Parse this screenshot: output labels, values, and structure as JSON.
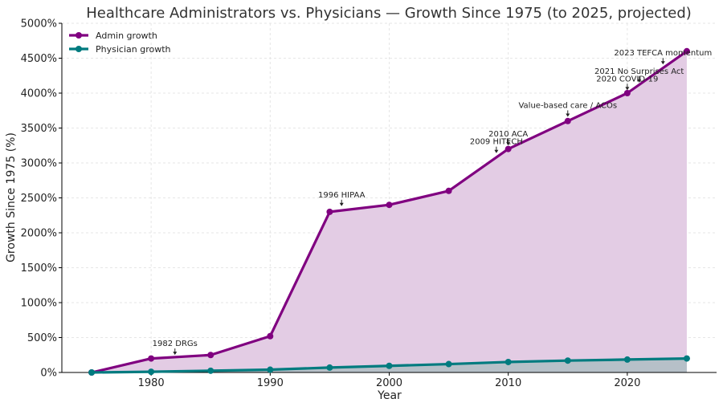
{
  "chart_data": {
    "type": "area",
    "title": "Healthcare Administrators vs. Physicians — Growth Since 1975 (to 2025, projected)",
    "xlabel": "Year",
    "ylabel": "Growth Since 1975 (%)",
    "xlim": [
      1972.5,
      2027.5
    ],
    "ylim": [
      0,
      5000
    ],
    "xticks": [
      1980,
      1990,
      2000,
      2010,
      2020
    ],
    "yticks": [
      0,
      500,
      1000,
      1500,
      2000,
      2500,
      3000,
      3500,
      4000,
      4500,
      5000
    ],
    "ytick_suffix": "%",
    "grid": true,
    "legend": "top-left",
    "series": [
      {
        "name": "Admin growth",
        "color": "#800080",
        "fill_color": "#e3cce4",
        "x": [
          1975,
          1980,
          1985,
          1990,
          1995,
          2000,
          2005,
          2010,
          2015,
          2020,
          2025
        ],
        "y": [
          0,
          200,
          250,
          520,
          2300,
          2400,
          2600,
          3200,
          3600,
          4000,
          4600
        ]
      },
      {
        "name": "Physician growth",
        "color": "#007b7f",
        "fill_color": "#b6c0c8",
        "x": [
          1975,
          1980,
          1985,
          1990,
          1995,
          2000,
          2005,
          2010,
          2015,
          2020,
          2025
        ],
        "y": [
          0,
          10,
          25,
          40,
          70,
          95,
          120,
          150,
          170,
          185,
          200
        ]
      }
    ],
    "annotations": [
      {
        "text": "1982 DRGs",
        "x": 1982,
        "y": 240,
        "anchor": "middle",
        "text_dx": 0,
        "text_dy": -12
      },
      {
        "text": "1996 HIPAA",
        "x": 1996,
        "y": 2370,
        "anchor": "middle",
        "text_dx": 0,
        "text_dy": -12
      },
      {
        "text": "2009 HITECH",
        "x": 2009,
        "y": 3130,
        "anchor": "middle",
        "text_dx": 0,
        "text_dy": -12
      },
      {
        "text": "2010 ACA",
        "x": 2010,
        "y": 3240,
        "anchor": "middle",
        "text_dx": 0,
        "text_dy": -12
      },
      {
        "text": "Value-based care / ACOs",
        "x": 2015,
        "y": 3650,
        "anchor": "middle",
        "text_dx": 0,
        "text_dy": -12
      },
      {
        "text": "2020 COVID-19",
        "x": 2020,
        "y": 4030,
        "anchor": "middle",
        "text_dx": 0,
        "text_dy": -12
      },
      {
        "text": "2021 No Surprises Act",
        "x": 2021,
        "y": 4140,
        "anchor": "middle",
        "text_dx": 0,
        "text_dy": -12
      },
      {
        "text": "2023 TEFCA momentum",
        "x": 2023,
        "y": 4400,
        "anchor": "middle",
        "text_dx": 0,
        "text_dy": -12
      }
    ]
  }
}
